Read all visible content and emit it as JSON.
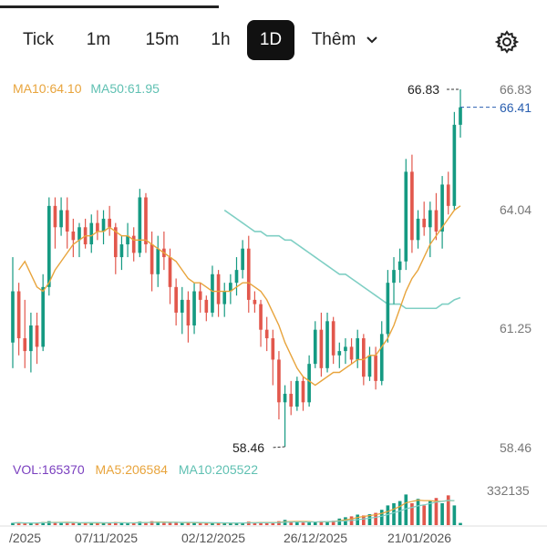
{
  "tabs": [
    {
      "label": "Tick",
      "active": false
    },
    {
      "label": "1m",
      "active": false
    },
    {
      "label": "15m",
      "active": false
    },
    {
      "label": "1h",
      "active": false
    },
    {
      "label": "1D",
      "active": true
    },
    {
      "label": "Thêm",
      "active": false
    }
  ],
  "more_icon": "chevron-down-icon",
  "settings_icon": "gear-icon",
  "price_legend": {
    "ma10": "MA10:64.10",
    "ma50": "MA50:61.95"
  },
  "volume_legend": {
    "vol": "VOL:165370",
    "ma5": "MA5:206584",
    "ma10": "MA10:205522"
  },
  "price_axis": [
    "66.83",
    "64.04",
    "61.25",
    "58.46"
  ],
  "last_price": "66.41",
  "high_label": "66.83",
  "low_label": "58.46",
  "volume_axis": "332135",
  "date_axis": [
    "/2025",
    "07/11/2025",
    "02/12/2025",
    "26/12/2025",
    "21/01/2026"
  ],
  "colors": {
    "up": "#159a82",
    "down": "#e2574c",
    "ma10": "#e8a43c",
    "ma50": "#7fcfc4",
    "ma5": "#e8a43c",
    "vol_label": "#7a3fbf",
    "price_tag": "#2a5fb0"
  },
  "chart_data": {
    "type": "candlestick",
    "y_range": [
      58.46,
      66.83
    ],
    "candles": [
      {
        "o": 60.9,
        "h": 62.9,
        "l": 60.3,
        "c": 62.1
      },
      {
        "o": 62.1,
        "h": 62.3,
        "l": 60.6,
        "c": 61.0
      },
      {
        "o": 61.0,
        "h": 61.9,
        "l": 60.3,
        "c": 60.7
      },
      {
        "o": 60.7,
        "h": 61.6,
        "l": 60.2,
        "c": 61.3
      },
      {
        "o": 61.3,
        "h": 61.6,
        "l": 60.4,
        "c": 60.8
      },
      {
        "o": 60.8,
        "h": 62.5,
        "l": 60.7,
        "c": 62.2
      },
      {
        "o": 62.2,
        "h": 64.3,
        "l": 62.0,
        "c": 64.1
      },
      {
        "o": 64.1,
        "h": 64.3,
        "l": 63.1,
        "c": 63.6
      },
      {
        "o": 63.6,
        "h": 64.3,
        "l": 63.4,
        "c": 64.0
      },
      {
        "o": 64.0,
        "h": 64.3,
        "l": 63.1,
        "c": 63.5
      },
      {
        "o": 63.5,
        "h": 63.8,
        "l": 62.9,
        "c": 63.3
      },
      {
        "o": 63.3,
        "h": 63.7,
        "l": 62.9,
        "c": 63.6
      },
      {
        "o": 63.6,
        "h": 63.8,
        "l": 63.1,
        "c": 63.2
      },
      {
        "o": 63.2,
        "h": 63.9,
        "l": 63.0,
        "c": 63.7
      },
      {
        "o": 63.7,
        "h": 64.0,
        "l": 63.3,
        "c": 63.5
      },
      {
        "o": 63.5,
        "h": 64.0,
        "l": 63.2,
        "c": 63.8
      },
      {
        "o": 63.8,
        "h": 64.1,
        "l": 63.4,
        "c": 63.6
      },
      {
        "o": 63.6,
        "h": 63.7,
        "l": 62.5,
        "c": 62.9
      },
      {
        "o": 62.9,
        "h": 63.4,
        "l": 62.6,
        "c": 63.2
      },
      {
        "o": 63.2,
        "h": 63.7,
        "l": 62.9,
        "c": 63.4
      },
      {
        "o": 63.4,
        "h": 63.6,
        "l": 62.8,
        "c": 63.0
      },
      {
        "o": 63.0,
        "h": 64.5,
        "l": 62.9,
        "c": 64.3
      },
      {
        "o": 64.3,
        "h": 64.4,
        "l": 63.0,
        "c": 63.2
      },
      {
        "o": 63.2,
        "h": 63.5,
        "l": 62.1,
        "c": 62.5
      },
      {
        "o": 62.5,
        "h": 63.4,
        "l": 62.2,
        "c": 63.1
      },
      {
        "o": 63.1,
        "h": 63.5,
        "l": 62.6,
        "c": 62.9
      },
      {
        "o": 62.9,
        "h": 63.1,
        "l": 61.8,
        "c": 62.2
      },
      {
        "o": 62.2,
        "h": 62.4,
        "l": 61.3,
        "c": 61.6
      },
      {
        "o": 61.6,
        "h": 62.2,
        "l": 61.1,
        "c": 61.9
      },
      {
        "o": 61.9,
        "h": 62.1,
        "l": 60.9,
        "c": 61.3
      },
      {
        "o": 61.3,
        "h": 62.3,
        "l": 61.1,
        "c": 62.1
      },
      {
        "o": 62.1,
        "h": 62.3,
        "l": 61.6,
        "c": 61.9
      },
      {
        "o": 61.9,
        "h": 62.0,
        "l": 61.4,
        "c": 61.6
      },
      {
        "o": 61.6,
        "h": 62.7,
        "l": 61.5,
        "c": 62.5
      },
      {
        "o": 62.5,
        "h": 62.6,
        "l": 61.5,
        "c": 61.8
      },
      {
        "o": 61.8,
        "h": 62.3,
        "l": 61.5,
        "c": 62.1
      },
      {
        "o": 62.1,
        "h": 62.5,
        "l": 61.8,
        "c": 62.3
      },
      {
        "o": 62.3,
        "h": 62.9,
        "l": 62.0,
        "c": 62.6
      },
      {
        "o": 62.6,
        "h": 63.3,
        "l": 62.4,
        "c": 63.1
      },
      {
        "o": 63.1,
        "h": 63.4,
        "l": 61.6,
        "c": 61.9
      },
      {
        "o": 61.9,
        "h": 62.1,
        "l": 61.6,
        "c": 61.8
      },
      {
        "o": 61.8,
        "h": 61.9,
        "l": 60.8,
        "c": 61.2
      },
      {
        "o": 61.2,
        "h": 61.5,
        "l": 60.7,
        "c": 61.0
      },
      {
        "o": 61.0,
        "h": 61.2,
        "l": 59.9,
        "c": 60.5
      },
      {
        "o": 60.5,
        "h": 60.7,
        "l": 59.1,
        "c": 59.5
      },
      {
        "o": 59.5,
        "h": 59.9,
        "l": 58.46,
        "c": 59.7
      },
      {
        "o": 59.7,
        "h": 60.0,
        "l": 59.2,
        "c": 59.4
      },
      {
        "o": 59.4,
        "h": 60.1,
        "l": 59.3,
        "c": 60.0
      },
      {
        "o": 60.0,
        "h": 60.1,
        "l": 59.3,
        "c": 59.5
      },
      {
        "o": 59.5,
        "h": 60.6,
        "l": 59.4,
        "c": 60.4
      },
      {
        "o": 60.4,
        "h": 61.4,
        "l": 60.3,
        "c": 61.2
      },
      {
        "o": 61.2,
        "h": 61.6,
        "l": 60.1,
        "c": 60.3
      },
      {
        "o": 60.3,
        "h": 61.6,
        "l": 60.2,
        "c": 61.4
      },
      {
        "o": 61.4,
        "h": 61.5,
        "l": 60.4,
        "c": 60.6
      },
      {
        "o": 60.6,
        "h": 60.9,
        "l": 60.3,
        "c": 60.7
      },
      {
        "o": 60.7,
        "h": 61.0,
        "l": 60.4,
        "c": 60.8
      },
      {
        "o": 60.8,
        "h": 61.0,
        "l": 60.4,
        "c": 60.5
      },
      {
        "o": 60.5,
        "h": 61.2,
        "l": 60.3,
        "c": 61.0
      },
      {
        "o": 61.0,
        "h": 61.1,
        "l": 59.9,
        "c": 60.1
      },
      {
        "o": 60.1,
        "h": 60.8,
        "l": 60.0,
        "c": 60.6
      },
      {
        "o": 60.6,
        "h": 60.8,
        "l": 59.8,
        "c": 60.0
      },
      {
        "o": 60.0,
        "h": 61.4,
        "l": 59.9,
        "c": 61.1
      },
      {
        "o": 61.1,
        "h": 62.6,
        "l": 60.9,
        "c": 62.3
      },
      {
        "o": 62.3,
        "h": 62.9,
        "l": 61.8,
        "c": 62.6
      },
      {
        "o": 62.6,
        "h": 63.1,
        "l": 62.3,
        "c": 62.8
      },
      {
        "o": 62.8,
        "h": 65.2,
        "l": 62.6,
        "c": 64.9
      },
      {
        "o": 64.9,
        "h": 65.3,
        "l": 63.0,
        "c": 63.3
      },
      {
        "o": 63.3,
        "h": 64.0,
        "l": 63.1,
        "c": 63.8
      },
      {
        "o": 63.8,
        "h": 64.2,
        "l": 63.4,
        "c": 63.6
      },
      {
        "o": 63.6,
        "h": 64.2,
        "l": 62.9,
        "c": 64.0
      },
      {
        "o": 64.0,
        "h": 64.4,
        "l": 63.3,
        "c": 63.5
      },
      {
        "o": 63.5,
        "h": 64.8,
        "l": 63.1,
        "c": 64.6
      },
      {
        "o": 64.6,
        "h": 64.9,
        "l": 63.9,
        "c": 64.1
      },
      {
        "o": 64.1,
        "h": 66.3,
        "l": 64.0,
        "c": 66.0
      },
      {
        "o": 66.0,
        "h": 66.83,
        "l": 65.7,
        "c": 66.41
      }
    ],
    "ma10": [
      62.6,
      62.8,
      62.5,
      62.2,
      62.1,
      62.3,
      62.6,
      62.8,
      63.0,
      63.2,
      63.3,
      63.4,
      63.4,
      63.5,
      63.5,
      63.6,
      63.5,
      63.4,
      63.4,
      63.3,
      63.3,
      63.3,
      63.2,
      63.1,
      63.0,
      62.9,
      62.8,
      62.6,
      62.4,
      62.3,
      62.3,
      62.2,
      62.1,
      62.1,
      62.1,
      62.1,
      62.2,
      62.3,
      62.3,
      62.2,
      62.1,
      61.9,
      61.6,
      61.3,
      60.9,
      60.6,
      60.3,
      60.1,
      60.0,
      59.9,
      60.0,
      60.1,
      60.2,
      60.2,
      60.3,
      60.4,
      60.5,
      60.5,
      60.6,
      60.6,
      60.8,
      61.0,
      61.3,
      61.7,
      62.1,
      62.4,
      62.6,
      62.9,
      63.2,
      63.4,
      63.6,
      63.8,
      64.0,
      64.1
    ],
    "ma50": [
      64.0,
      63.9,
      63.8,
      63.7,
      63.6,
      63.5,
      63.5,
      63.4,
      63.4,
      63.4,
      63.3,
      63.3,
      63.2,
      63.1,
      63.0,
      62.9,
      62.8,
      62.7,
      62.6,
      62.5,
      62.5,
      62.4,
      62.3,
      62.2,
      62.1,
      62.0,
      61.9,
      61.8,
      61.8,
      61.8,
      61.7,
      61.7,
      61.7,
      61.7,
      61.7,
      61.7,
      61.8,
      61.8,
      61.9,
      61.95
    ]
  }
}
